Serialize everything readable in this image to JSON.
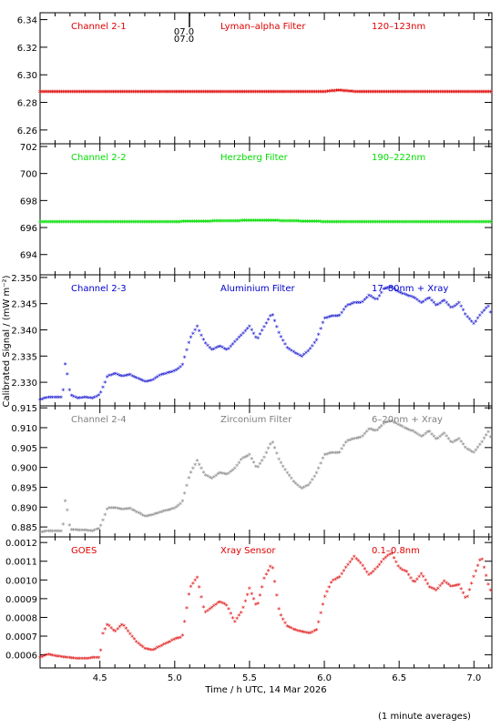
{
  "figure": {
    "ylabel": "Calibrated Signal / (mW m⁻²)",
    "xlabel": "Time / h UTC, 14 Mar 2026",
    "footer": "(1 minute averages)",
    "marker_label": "07.0\n07.0"
  },
  "chart_data": [
    {
      "type": "scatter",
      "title": "Channel 2-1",
      "filter": "Lyman–alpha Filter",
      "band": "120–123nm",
      "color": "#dd0000",
      "xlim": [
        4.1,
        7.12
      ],
      "ylim": [
        6.25,
        6.345
      ],
      "yticks": [
        6.26,
        6.28,
        6.3,
        6.32,
        6.34
      ],
      "ytick_labels": [
        "6.26",
        "6.28",
        "6.30",
        "6.32",
        "6.34"
      ],
      "series": [
        {
          "x": [
            4.1,
            5.0,
            5.5,
            6.0,
            6.1,
            6.2,
            6.5,
            7.0,
            7.12
          ],
          "y": [
            6.287,
            6.287,
            6.287,
            6.287,
            6.288,
            6.287,
            6.287,
            6.287,
            6.287
          ]
        }
      ]
    },
    {
      "type": "scatter",
      "title": "Channel 2-2",
      "filter": "Herzberg Filter",
      "band": "190–222nm",
      "color": "#00dd00",
      "xlim": [
        4.1,
        7.12
      ],
      "ylim": [
        692.5,
        702.2
      ],
      "yticks": [
        694,
        696,
        698,
        700,
        702
      ],
      "ytick_labels": [
        "694",
        "696",
        "698",
        "700",
        "702"
      ],
      "series": [
        {
          "x": [
            4.1,
            5.0,
            5.6,
            6.0,
            6.5,
            7.0,
            7.12
          ],
          "y": [
            696.35,
            696.35,
            696.45,
            696.35,
            696.35,
            696.35,
            696.35
          ]
        }
      ]
    },
    {
      "type": "scatter",
      "title": "Channel 2-3",
      "filter": "Aluminium Filter",
      "band": "17–80nm + Xray",
      "color": "#0000cc",
      "xlim": [
        4.1,
        7.12
      ],
      "ylim": [
        2.3255,
        2.3505
      ],
      "yticks": [
        2.33,
        2.335,
        2.34,
        2.345,
        2.35
      ],
      "ytick_labels": [
        "2.330",
        "2.335",
        "2.340",
        "2.345",
        "2.350"
      ],
      "series": [
        {
          "x": [
            4.1,
            4.15,
            4.2,
            4.25,
            4.27,
            4.3,
            4.35,
            4.4,
            4.45,
            4.5,
            4.55,
            4.6,
            4.65,
            4.7,
            4.8,
            4.85,
            4.9,
            5.0,
            5.05,
            5.1,
            5.15,
            5.2,
            5.25,
            5.3,
            5.35,
            5.4,
            5.45,
            5.5,
            5.55,
            5.6,
            5.65,
            5.7,
            5.75,
            5.8,
            5.85,
            5.9,
            5.95,
            6.0,
            6.05,
            6.1,
            6.15,
            6.2,
            6.25,
            6.3,
            6.35,
            6.4,
            6.45,
            6.5,
            6.55,
            6.6,
            6.65,
            6.7,
            6.75,
            6.8,
            6.85,
            6.9,
            6.95,
            7.0,
            7.05,
            7.1,
            7.12
          ],
          "y": [
            2.3265,
            2.327,
            2.327,
            2.327,
            2.334,
            2.3275,
            2.3268,
            2.327,
            2.3268,
            2.3275,
            2.331,
            2.3315,
            2.331,
            2.3313,
            2.33,
            2.3302,
            2.3312,
            2.332,
            2.333,
            2.338,
            2.3405,
            2.3375,
            2.336,
            2.3368,
            2.336,
            2.3375,
            2.339,
            2.3405,
            2.338,
            2.3405,
            2.343,
            2.339,
            2.3365,
            2.3355,
            2.3348,
            2.336,
            2.338,
            2.342,
            2.3425,
            2.3425,
            2.3445,
            2.345,
            2.345,
            2.3465,
            2.3455,
            2.3478,
            2.348,
            2.347,
            2.3465,
            2.346,
            2.345,
            2.346,
            2.3445,
            2.3455,
            2.344,
            2.345,
            2.3425,
            2.341,
            2.343,
            2.3445,
            2.342
          ]
        }
      ]
    },
    {
      "type": "scatter",
      "title": "Channel 2-4",
      "filter": "Zirconium Filter",
      "band": "6–20nm + Xray",
      "color": "#808080",
      "xlim": [
        4.1,
        7.12
      ],
      "ylim": [
        0.8825,
        0.9155
      ],
      "yticks": [
        0.885,
        0.89,
        0.895,
        0.9,
        0.905,
        0.91,
        0.915
      ],
      "ytick_labels": [
        "0.885",
        "0.890",
        "0.895",
        "0.900",
        "0.905",
        "0.910",
        "0.915"
      ],
      "series": [
        {
          "x": [
            4.1,
            4.15,
            4.2,
            4.25,
            4.27,
            4.3,
            4.35,
            4.4,
            4.45,
            4.5,
            4.55,
            4.6,
            4.65,
            4.7,
            4.8,
            4.85,
            4.9,
            5.0,
            5.05,
            5.1,
            5.15,
            5.2,
            5.25,
            5.3,
            5.35,
            5.4,
            5.45,
            5.5,
            5.55,
            5.6,
            5.65,
            5.7,
            5.75,
            5.8,
            5.85,
            5.9,
            5.95,
            6.0,
            6.05,
            6.1,
            6.15,
            6.2,
            6.25,
            6.3,
            6.35,
            6.4,
            6.45,
            6.5,
            6.55,
            6.6,
            6.65,
            6.7,
            6.75,
            6.8,
            6.85,
            6.9,
            6.95,
            7.0,
            7.05,
            7.1,
            7.12
          ],
          "y": [
            0.8835,
            0.8838,
            0.8837,
            0.8838,
            0.8922,
            0.8842,
            0.884,
            0.884,
            0.8838,
            0.8845,
            0.8895,
            0.8897,
            0.8892,
            0.8895,
            0.8875,
            0.8878,
            0.8885,
            0.8895,
            0.891,
            0.898,
            0.9015,
            0.898,
            0.897,
            0.8985,
            0.898,
            0.8995,
            0.902,
            0.903,
            0.8995,
            0.9025,
            0.9065,
            0.9015,
            0.8985,
            0.896,
            0.8945,
            0.8955,
            0.8985,
            0.903,
            0.9035,
            0.9035,
            0.9065,
            0.907,
            0.9075,
            0.9095,
            0.909,
            0.911,
            0.9115,
            0.9105,
            0.9095,
            0.9088,
            0.9075,
            0.909,
            0.9068,
            0.9085,
            0.906,
            0.907,
            0.9045,
            0.9035,
            0.906,
            0.909,
            0.906
          ]
        }
      ]
    },
    {
      "type": "scatter",
      "title": "GOES",
      "filter": "Xray Sensor",
      "band": "0.1–0.8nm",
      "color": "#dd0000",
      "xlim": [
        4.1,
        7.12
      ],
      "ylim": [
        0.00053,
        0.00123
      ],
      "yticks": [
        0.0006,
        0.0007,
        0.0008,
        0.0009,
        0.001,
        0.0011,
        0.0012
      ],
      "ytick_labels": [
        "0.0006",
        "0.0007",
        "0.0008",
        "0.0009",
        "0.0010",
        "0.0011",
        "0.0012"
      ],
      "series": [
        {
          "x": [
            4.1,
            4.15,
            4.2,
            4.25,
            4.3,
            4.35,
            4.4,
            4.45,
            4.5,
            4.52,
            4.55,
            4.6,
            4.65,
            4.7,
            4.75,
            4.8,
            4.85,
            4.9,
            4.95,
            5.0,
            5.05,
            5.1,
            5.15,
            5.2,
            5.25,
            5.3,
            5.35,
            5.4,
            5.45,
            5.5,
            5.55,
            5.6,
            5.65,
            5.7,
            5.75,
            5.8,
            5.85,
            5.9,
            5.95,
            6.0,
            6.05,
            6.1,
            6.15,
            6.2,
            6.25,
            6.3,
            6.35,
            6.4,
            6.45,
            6.5,
            6.55,
            6.6,
            6.65,
            6.7,
            6.75,
            6.8,
            6.85,
            6.9,
            6.95,
            7.0,
            7.05,
            7.1,
            7.12
          ],
          "y": [
            0.00058,
            0.0006,
            0.00059,
            0.000585,
            0.00058,
            0.000575,
            0.000575,
            0.00058,
            0.00058,
            0.00071,
            0.00076,
            0.00072,
            0.00076,
            0.00071,
            0.00066,
            0.00063,
            0.00062,
            0.00064,
            0.00066,
            0.00068,
            0.00069,
            0.00095,
            0.00101,
            0.00082,
            0.00085,
            0.00088,
            0.00086,
            0.00077,
            0.00083,
            0.00095,
            0.00085,
            0.00101,
            0.00108,
            0.00082,
            0.00075,
            0.00073,
            0.00072,
            0.00071,
            0.00073,
            0.0009,
            0.00099,
            0.00101,
            0.00107,
            0.00112,
            0.00108,
            0.00102,
            0.00106,
            0.00111,
            0.00114,
            0.00106,
            0.00104,
            0.00098,
            0.00103,
            0.00096,
            0.00094,
            0.00099,
            0.00096,
            0.00097,
            0.00089,
            0.00102,
            0.00112,
            0.00096,
            0.00092
          ]
        }
      ]
    }
  ]
}
